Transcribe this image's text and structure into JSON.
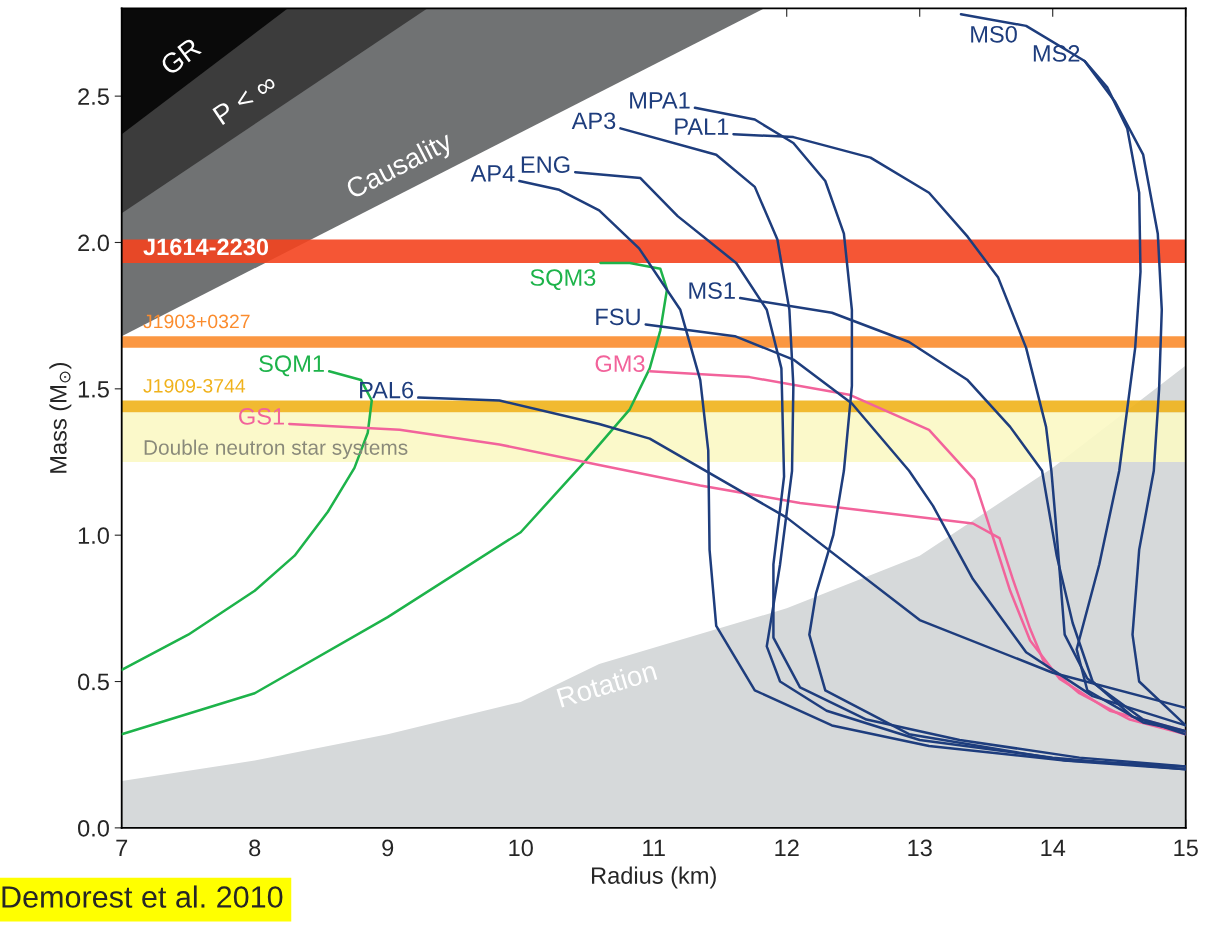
{
  "chart_data": {
    "type": "line",
    "xlabel": "Radius (km)",
    "ylabel": "Mass (M$_{⊙}$)",
    "xlim": [
      7,
      15
    ],
    "ylim": [
      0,
      2.8
    ],
    "xticks": [
      7,
      8,
      9,
      10,
      11,
      12,
      13,
      14,
      15
    ],
    "yticks": [
      {
        "value": 0,
        "label": "0.0"
      },
      {
        "value": 0.5,
        "label": "0.5"
      },
      {
        "value": 1,
        "label": "1.0"
      },
      {
        "value": 1.5,
        "label": "1.5"
      },
      {
        "value": 2,
        "label": "2.0"
      },
      {
        "value": 2.5,
        "label": "2.5"
      }
    ],
    "grid": false,
    "bands": [
      {
        "axis": "y",
        "from": 1.25,
        "to": 1.42,
        "label": "Double neutron star systems",
        "color": "#fbf8c4"
      },
      {
        "axis": "y",
        "from": 1.93,
        "to": 2.01,
        "label": "J1614-2230",
        "color": "#f4441f"
      },
      {
        "axis": "y",
        "from": 1.64,
        "to": 1.68,
        "label": "J1903+0327",
        "color": "#fb8c2e"
      },
      {
        "axis": "y",
        "from": 1.42,
        "to": 1.46,
        "label": "J1909-3744",
        "color": "#f0b21b"
      }
    ],
    "annotations": [
      "Demorest et al. 2010"
    ],
    "series": [
      {
        "type": "area",
        "name": "Rotation",
        "color": "#d6d9da",
        "x": [
          7,
          8,
          9,
          10,
          10.59,
          12,
          13,
          14,
          15
        ],
        "values": [
          0.16,
          0.23,
          0.32,
          0.43,
          0.56,
          0.75,
          0.93,
          1.23,
          1.58
        ]
      },
      {
        "type": "area",
        "name": "Causality",
        "color": "#707273",
        "x": [
          7,
          11.83
        ],
        "values": [
          1.68,
          2.8
        ]
      },
      {
        "type": "area",
        "name": "P < ∞",
        "color": "#3c3c3c",
        "x": [
          7,
          9.3
        ],
        "values": [
          2.1,
          2.8
        ]
      },
      {
        "type": "area",
        "name": "GR",
        "color": "#0a0a0a",
        "x": [
          7,
          8.25
        ],
        "values": [
          2.37,
          2.8
        ]
      },
      {
        "name": "SQM1",
        "color": "#1db34a",
        "x": [
          8.56,
          8.8,
          8.88,
          8.85,
          8.75,
          8.55,
          8.3,
          8.0,
          7.5,
          7.0
        ],
        "values": [
          1.56,
          1.53,
          1.46,
          1.35,
          1.23,
          1.08,
          0.93,
          0.81,
          0.66,
          0.54
        ]
      },
      {
        "name": "SQM3",
        "color": "#1db34a",
        "x": [
          10.6,
          10.82,
          11.05,
          11.1,
          11.05,
          10.97,
          10.82,
          10.46,
          10.0,
          9.0,
          8.0,
          7.0
        ],
        "values": [
          1.93,
          1.93,
          1.91,
          1.84,
          1.7,
          1.57,
          1.43,
          1.24,
          1.01,
          0.72,
          0.46,
          0.32
        ]
      },
      {
        "name": "GS1",
        "color": "#f2639b",
        "x": [
          8.26,
          9.09,
          9.84,
          10.59,
          11.35,
          12.1,
          12.85,
          13.4,
          13.6,
          13.7,
          13.83,
          13.94,
          14.2,
          14.58,
          15
        ],
        "values": [
          1.38,
          1.36,
          1.31,
          1.24,
          1.17,
          1.11,
          1.07,
          1.04,
          0.99,
          0.85,
          0.68,
          0.56,
          0.46,
          0.37,
          0.32
        ]
      },
      {
        "name": "GM3",
        "color": "#f2639b",
        "x": [
          10.97,
          11.72,
          12.47,
          13.07,
          13.41,
          13.56,
          13.68,
          13.83,
          14.05,
          14.43,
          15
        ],
        "values": [
          1.56,
          1.54,
          1.48,
          1.36,
          1.19,
          0.98,
          0.81,
          0.64,
          0.51,
          0.4,
          0.33
        ]
      },
      {
        "name": "PAL6",
        "color": "#1e3d7d",
        "x": [
          9.23,
          9.84,
          10.59,
          10.97,
          12.0,
          13.0,
          14.0,
          15
        ],
        "values": [
          1.47,
          1.46,
          1.38,
          1.33,
          1.06,
          0.71,
          0.53,
          0.41
        ]
      },
      {
        "name": "AP4",
        "color": "#1e3d7d",
        "x": [
          9.99,
          10.29,
          10.59,
          10.89,
          11.2,
          11.35,
          11.41,
          11.42,
          11.47,
          11.76,
          12.34,
          13.07,
          14.09,
          15
        ],
        "values": [
          2.21,
          2.18,
          2.11,
          1.98,
          1.77,
          1.53,
          1.29,
          0.95,
          0.69,
          0.47,
          0.35,
          0.28,
          0.23,
          0.2
        ]
      },
      {
        "name": "ENG",
        "color": "#1e3d7d",
        "x": [
          10.41,
          10.9,
          11.18,
          11.62,
          11.85,
          11.96,
          11.98,
          11.9,
          11.9,
          12.1,
          12.6,
          13.3,
          14.2,
          15
        ],
        "values": [
          2.24,
          2.22,
          2.09,
          1.93,
          1.77,
          1.57,
          1.2,
          0.9,
          0.65,
          0.48,
          0.37,
          0.3,
          0.24,
          0.21
        ]
      },
      {
        "name": "AP3",
        "color": "#1e3d7d",
        "x": [
          10.75,
          11.47,
          11.76,
          11.93,
          12.02,
          12.05,
          12.04,
          11.95,
          11.85,
          11.95,
          12.3,
          13.0,
          14.0,
          15
        ],
        "values": [
          2.39,
          2.3,
          2.19,
          2.01,
          1.77,
          1.51,
          1.22,
          0.9,
          0.62,
          0.5,
          0.4,
          0.3,
          0.24,
          0.2
        ]
      },
      {
        "name": "MPA1",
        "color": "#1e3d7d",
        "x": [
          11.31,
          11.76,
          12.05,
          12.29,
          12.43,
          12.49,
          12.49,
          12.43,
          12.35,
          12.22,
          12.17,
          12.29,
          12.92,
          14.1,
          15
        ],
        "values": [
          2.46,
          2.42,
          2.34,
          2.21,
          2.03,
          1.77,
          1.51,
          1.22,
          1.0,
          0.8,
          0.66,
          0.47,
          0.32,
          0.23,
          0.21
        ]
      },
      {
        "name": "PAL1",
        "color": "#1e3d7d",
        "x": [
          11.6,
          12.05,
          12.63,
          13.07,
          13.36,
          13.59,
          13.8,
          13.95,
          13.99,
          14.02,
          14.09,
          14.26,
          14.68,
          15
        ],
        "values": [
          2.37,
          2.36,
          2.29,
          2.17,
          2.02,
          1.88,
          1.64,
          1.37,
          1.22,
          1.06,
          0.66,
          0.51,
          0.37,
          0.33
        ]
      },
      {
        "name": "MS1",
        "color": "#1e3d7d",
        "x": [
          11.65,
          12.34,
          12.92,
          13.36,
          13.68,
          13.92,
          14.03,
          14.15,
          14.3,
          14.6,
          15
        ],
        "values": [
          1.81,
          1.76,
          1.66,
          1.53,
          1.37,
          1.22,
          0.93,
          0.7,
          0.5,
          0.38,
          0.32
        ]
      },
      {
        "name": "FSU",
        "color": "#1e3d7d",
        "x": [
          10.94,
          11.61,
          12.05,
          12.49,
          12.92,
          13.1,
          13.4,
          13.8,
          14.3,
          15
        ],
        "values": [
          1.72,
          1.68,
          1.6,
          1.45,
          1.22,
          1.1,
          0.85,
          0.6,
          0.45,
          0.35
        ]
      },
      {
        "name": "MS0",
        "color": "#1e3d7d",
        "x": [
          13.31,
          13.8,
          14.24,
          14.47,
          14.68,
          14.79,
          14.82,
          14.8,
          14.76,
          14.65,
          14.6,
          14.65,
          15
        ],
        "values": [
          2.78,
          2.74,
          2.62,
          2.48,
          2.3,
          2.03,
          1.77,
          1.5,
          1.22,
          0.95,
          0.66,
          0.5,
          0.35
        ]
      },
      {
        "name": "MS2",
        "color": "#1e3d7d",
        "x": [
          14.24,
          14.41,
          14.56,
          14.65,
          14.66,
          14.62,
          14.5,
          14.35,
          14.18,
          14.26,
          14.68,
          15
        ],
        "values": [
          2.62,
          2.53,
          2.39,
          2.17,
          1.9,
          1.64,
          1.22,
          0.9,
          0.61,
          0.47,
          0.36,
          0.33
        ]
      }
    ]
  }
}
